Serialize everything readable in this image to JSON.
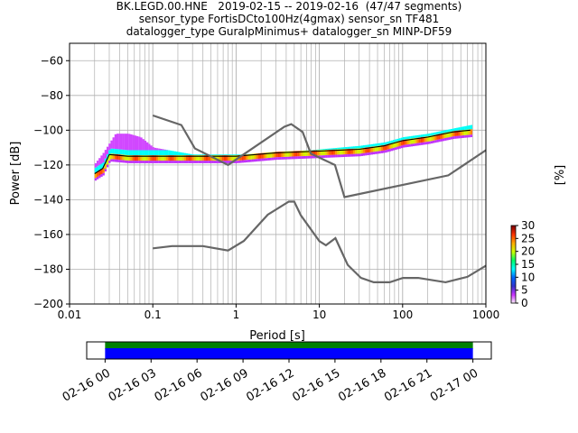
{
  "chart_data": [
    {
      "type": "heatmap",
      "title": [
        "BK.LEGD.00.HNE   2019-02-15 -- 2019-02-16  (47/47 segments)",
        "sensor_type FortisDCto100Hz(4gmax) sensor_sn TF481",
        "datalogger_type GuralpMinimus+ datalogger_sn MINP-DF59"
      ],
      "xlabel": "Period [s]",
      "ylabel": "Power [dB]",
      "xscale": "log",
      "xlim": [
        0.01,
        1000
      ],
      "ylim": [
        -200,
        -50
      ],
      "x_ticks": [
        {
          "value": 0.01,
          "label": "0.01"
        },
        {
          "value": 0.1,
          "label": "0.1"
        },
        {
          "value": 1,
          "label": "1"
        },
        {
          "value": 10,
          "label": "10"
        },
        {
          "value": 100,
          "label": "100"
        },
        {
          "value": 1000,
          "label": "1000"
        }
      ],
      "y_ticks": [
        {
          "value": -60,
          "label": "−60"
        },
        {
          "value": -80,
          "label": "−80"
        },
        {
          "value": -100,
          "label": "−100"
        },
        {
          "value": -120,
          "label": "−120"
        },
        {
          "value": -140,
          "label": "−140"
        },
        {
          "value": -160,
          "label": "−160"
        },
        {
          "value": -180,
          "label": "−180"
        },
        {
          "value": -200,
          "label": "−200"
        }
      ],
      "grid": true,
      "noise_models": [
        {
          "name": "NHNM",
          "color": "#666666",
          "points": [
            [
              0.1,
              -91.5
            ],
            [
              0.22,
              -97
            ],
            [
              0.32,
              -110.5
            ],
            [
              0.8,
              -120
            ],
            [
              3.8,
              -98
            ],
            [
              4.6,
              -96.5
            ],
            [
              6.3,
              -101
            ],
            [
              7.9,
              -113.5
            ],
            [
              15.4,
              -120
            ],
            [
              20,
              -138.5
            ],
            [
              354,
              -126
            ],
            [
              1000,
              -111.5
            ]
          ]
        },
        {
          "name": "NLNM",
          "color": "#666666",
          "points": [
            [
              0.1,
              -168
            ],
            [
              0.17,
              -166.7
            ],
            [
              0.4,
              -166.7
            ],
            [
              0.8,
              -169.2
            ],
            [
              1.24,
              -163.7
            ],
            [
              2.4,
              -148.6
            ],
            [
              4.3,
              -141.1
            ],
            [
              5.0,
              -141.1
            ],
            [
              6.0,
              -149
            ],
            [
              10,
              -163.8
            ],
            [
              12,
              -166.2
            ],
            [
              15.6,
              -162.1
            ],
            [
              21.9,
              -177.5
            ],
            [
              31.6,
              -185
            ],
            [
              45,
              -187.5
            ],
            [
              70,
              -187.5
            ],
            [
              101,
              -185
            ],
            [
              154,
              -185
            ],
            [
              328,
              -187.5
            ],
            [
              600,
              -184.4
            ],
            [
              1000,
              -178
            ]
          ]
        }
      ],
      "psd_mode_curve": {
        "name": "mode",
        "points": [
          [
            0.02,
            -125
          ],
          [
            0.025,
            -122
          ],
          [
            0.03,
            -114
          ],
          [
            0.05,
            -115
          ],
          [
            0.2,
            -115
          ],
          [
            0.5,
            -115
          ],
          [
            1,
            -115
          ],
          [
            3,
            -113
          ],
          [
            10,
            -112
          ],
          [
            30,
            -111
          ],
          [
            60,
            -109
          ],
          [
            100,
            -106
          ],
          [
            200,
            -104
          ],
          [
            400,
            -101
          ],
          [
            650,
            -100
          ]
        ]
      },
      "psd_upper_curve": {
        "points": [
          [
            0.02,
            -119
          ],
          [
            0.025,
            -113
          ],
          [
            0.035,
            -102
          ],
          [
            0.05,
            -102
          ],
          [
            0.07,
            -104
          ],
          [
            0.1,
            -110
          ],
          [
            0.3,
            -114
          ],
          [
            1,
            -114
          ],
          [
            3,
            -113
          ],
          [
            10,
            -111
          ],
          [
            30,
            -109
          ],
          [
            60,
            -107
          ],
          [
            100,
            -104
          ],
          [
            200,
            -102
          ],
          [
            400,
            -99
          ],
          [
            650,
            -97
          ]
        ]
      },
      "colorbar": {
        "label": "[%]",
        "min": 0,
        "max": 30,
        "ticks": [
          {
            "value": 0,
            "label": "0"
          },
          {
            "value": 5,
            "label": "5"
          },
          {
            "value": 10,
            "label": "10"
          },
          {
            "value": 15,
            "label": "15"
          },
          {
            "value": 20,
            "label": "20"
          },
          {
            "value": 25,
            "label": "25"
          },
          {
            "value": 30,
            "label": "30"
          }
        ],
        "colormap": [
          "#ffffff",
          "#cc33ff",
          "#3333cc",
          "#0066ff",
          "#00ffff",
          "#00ff66",
          "#ccff00",
          "#ffaa00",
          "#ff3300",
          "#800000"
        ]
      }
    },
    {
      "type": "timeline",
      "x_ticks": [
        "02-16 00",
        "02-16 03",
        "02-16 06",
        "02-16 09",
        "02-16 12",
        "02-16 15",
        "02-16 18",
        "02-16 21",
        "02-17 00"
      ],
      "xlim_hours": [
        -1.2,
        25.2
      ],
      "bars": [
        {
          "name": "data coverage",
          "start_hour": 0,
          "end_hour": 24,
          "color": "#008000"
        },
        {
          "name": "psd segments",
          "start_hour": 0,
          "end_hour": 24,
          "color": "#0000ff"
        }
      ]
    }
  ]
}
